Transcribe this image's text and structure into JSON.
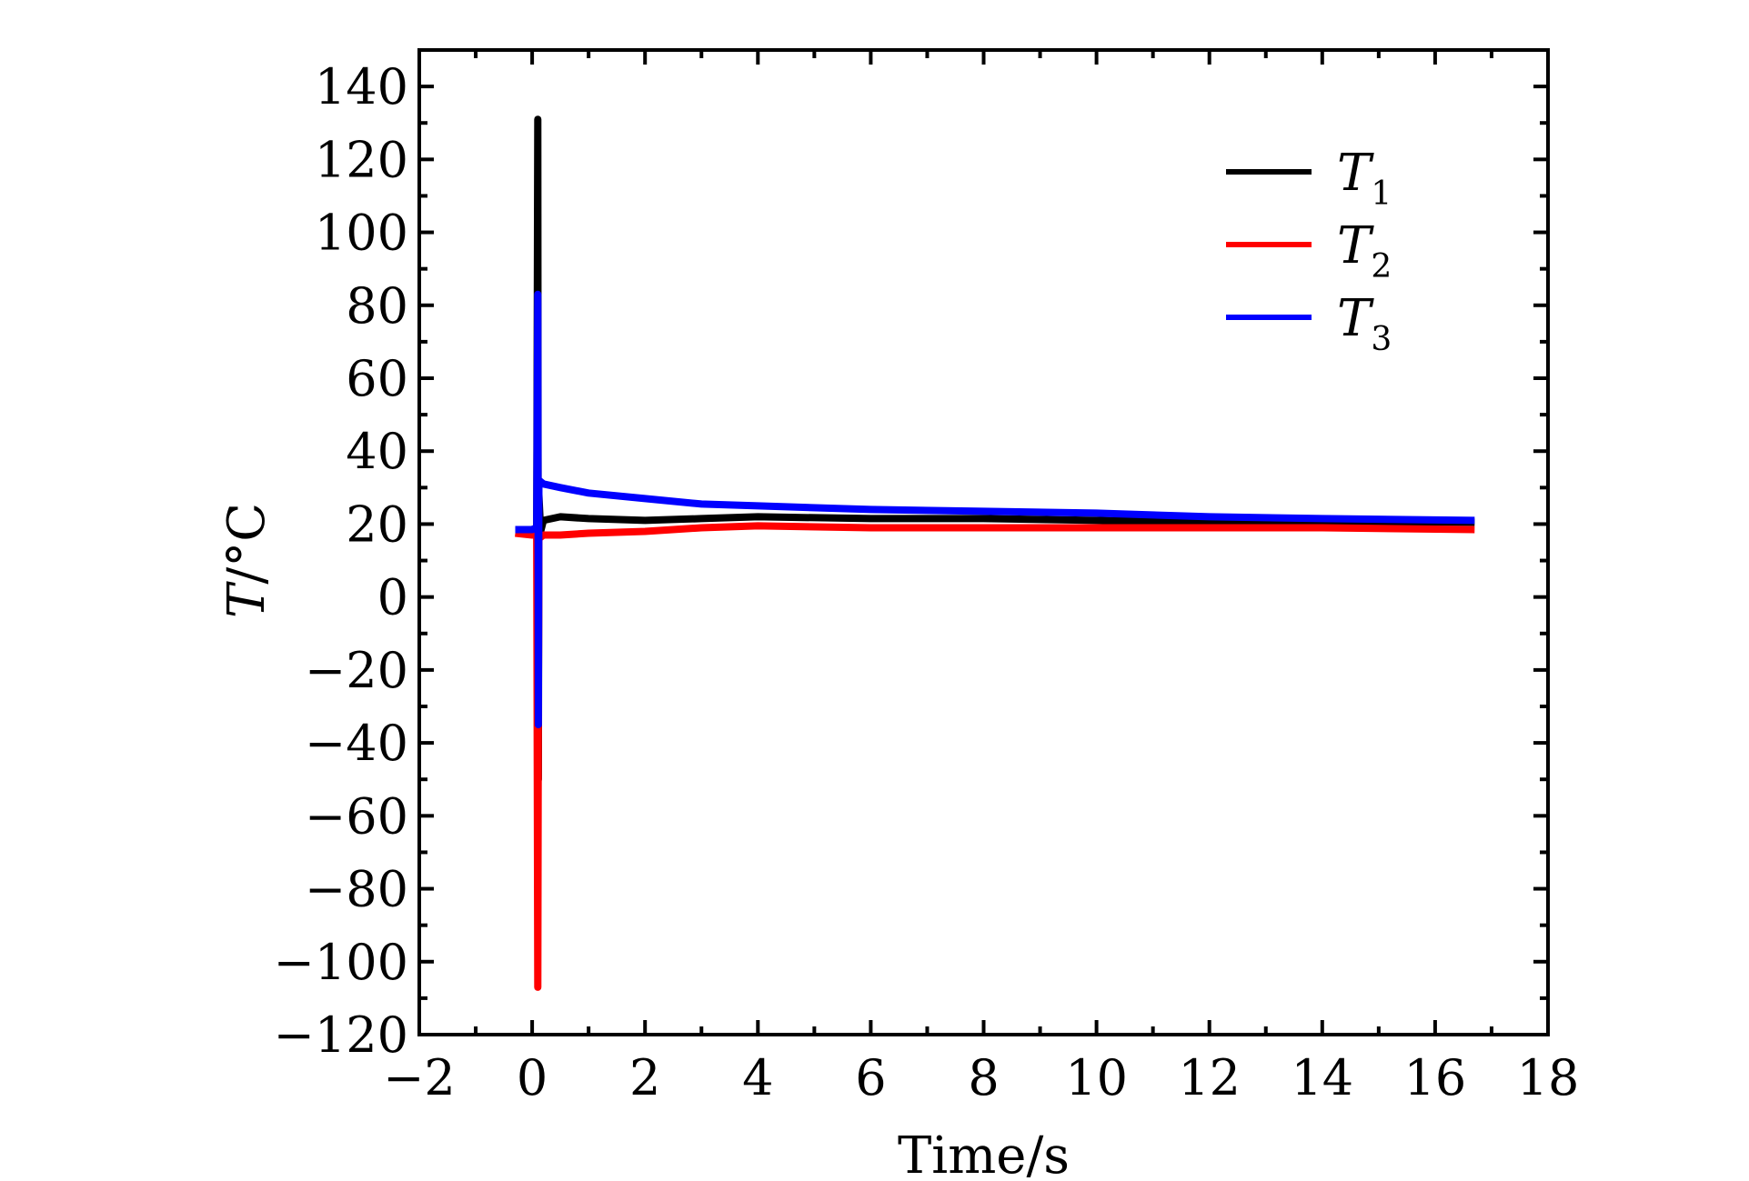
{
  "chart_data": {
    "type": "line",
    "title": "",
    "xlabel": "Time/s",
    "ylabel_italic": "T",
    "ylabel_rest": "/°C",
    "xlim": [
      -2,
      18
    ],
    "ylim": [
      -120,
      150
    ],
    "xticks": [
      -2,
      0,
      2,
      4,
      6,
      8,
      10,
      12,
      14,
      16,
      18
    ],
    "yticks": [
      -120,
      -100,
      -80,
      -60,
      -40,
      -20,
      0,
      20,
      40,
      60,
      80,
      100,
      120,
      140
    ],
    "xtick_labels": [
      "−2",
      "0",
      "2",
      "4",
      "6",
      "8",
      "10",
      "12",
      "14",
      "16",
      "18"
    ],
    "ytick_labels": [
      "−120",
      "−100",
      "−80",
      "−60",
      "−40",
      "−20",
      "0",
      "20",
      "40",
      "60",
      "80",
      "100",
      "120",
      "140"
    ],
    "grid": false,
    "legend_position": "top-right",
    "series": [
      {
        "name": "T",
        "sub": "1",
        "color": "#000000",
        "points": [
          [
            -0.3,
            18.5
          ],
          [
            0.0,
            18.5
          ],
          [
            0.08,
            19
          ],
          [
            0.1,
            131
          ],
          [
            0.11,
            -50
          ],
          [
            0.12,
            28
          ],
          [
            0.15,
            18
          ],
          [
            0.2,
            21
          ],
          [
            0.5,
            22
          ],
          [
            1,
            21.5
          ],
          [
            2,
            21
          ],
          [
            3,
            21.5
          ],
          [
            4,
            22
          ],
          [
            6,
            21.5
          ],
          [
            8,
            21.5
          ],
          [
            10,
            21
          ],
          [
            12,
            20.5
          ],
          [
            14,
            20.5
          ],
          [
            16.7,
            20.5
          ]
        ]
      },
      {
        "name": "T",
        "sub": "2",
        "color": "#ff0000",
        "points": [
          [
            -0.3,
            17.5
          ],
          [
            0.0,
            17
          ],
          [
            0.08,
            17
          ],
          [
            0.1,
            -107
          ],
          [
            0.11,
            -28
          ],
          [
            0.12,
            16
          ],
          [
            0.2,
            17
          ],
          [
            0.5,
            17
          ],
          [
            1,
            17.5
          ],
          [
            2,
            18
          ],
          [
            3,
            19
          ],
          [
            4,
            19.5
          ],
          [
            6,
            19
          ],
          [
            8,
            19
          ],
          [
            10,
            19
          ],
          [
            12,
            19
          ],
          [
            14,
            19
          ],
          [
            16.7,
            18.5
          ]
        ]
      },
      {
        "name": "T",
        "sub": "3",
        "color": "#0000ff",
        "points": [
          [
            -0.3,
            18.5
          ],
          [
            0.0,
            18.5
          ],
          [
            0.08,
            19
          ],
          [
            0.1,
            83
          ],
          [
            0.11,
            -35
          ],
          [
            0.12,
            32
          ],
          [
            0.2,
            31
          ],
          [
            0.5,
            30
          ],
          [
            1,
            28.5
          ],
          [
            2,
            27
          ],
          [
            3,
            25.5
          ],
          [
            4,
            25
          ],
          [
            6,
            24
          ],
          [
            8,
            23.5
          ],
          [
            10,
            23
          ],
          [
            12,
            22
          ],
          [
            14,
            21.5
          ],
          [
            16.7,
            21
          ]
        ]
      }
    ]
  }
}
